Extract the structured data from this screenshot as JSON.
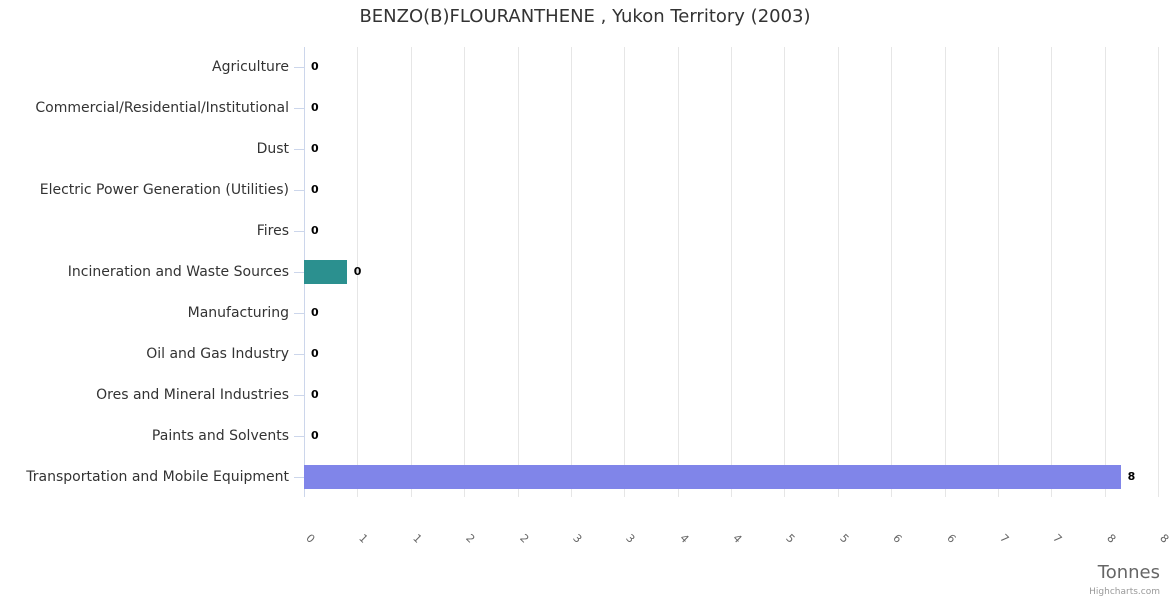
{
  "title": "BENZO(B)FLOURANTHENE , Yukon Territory (2003)",
  "credits": "Highcharts.com",
  "colors": {
    "background": "#ffffff",
    "title_text": "#333333",
    "category_label": "#333333",
    "tick_label": "#666666",
    "data_label": "#000000",
    "axis_line": "#ccd6eb",
    "gridline": "#e6e6e6",
    "axis_title": "#666666",
    "credits_text": "#999999",
    "bar_teal": "#2b908f",
    "bar_purple": "#8085e9"
  },
  "chart_data": {
    "type": "bar",
    "orientation": "horizontal",
    "title": "BENZO(B)FLOURANTHENE , Yukon Territory (2003)",
    "xlabel": "Tonnes",
    "ylabel": "",
    "xlim": [
      0,
      8
    ],
    "x_tick_interval": 0.5,
    "x_tick_labels": [
      "0",
      "1",
      "1",
      "2",
      "2",
      "3",
      "3",
      "4",
      "4",
      "5",
      "5",
      "6",
      "6",
      "7",
      "7",
      "8",
      "8"
    ],
    "grid": true,
    "legend": false,
    "categories": [
      "Agriculture",
      "Commercial/Residential/Institutional",
      "Dust",
      "Electric Power Generation (Utilities)",
      "Fires",
      "Incineration and Waste Sources",
      "Manufacturing",
      "Oil and Gas Industry",
      "Ores and Mineral Industries",
      "Paints and Solvents",
      "Transportation and Mobile Equipment"
    ],
    "values": [
      0,
      0,
      0,
      0,
      0,
      0.4,
      0,
      0,
      0,
      0,
      7.65
    ],
    "data_labels": [
      "0",
      "0",
      "0",
      "0",
      "0",
      "0",
      "0",
      "0",
      "0",
      "0",
      "8"
    ],
    "point_colors": [
      null,
      null,
      null,
      null,
      null,
      "#2b908f",
      null,
      null,
      null,
      null,
      "#8085e9"
    ]
  }
}
